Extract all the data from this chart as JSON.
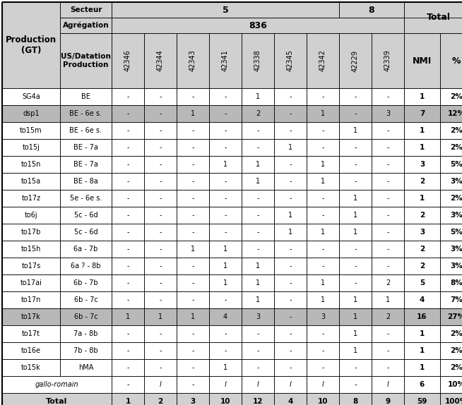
{
  "rows": [
    [
      "SG4a",
      "BE",
      "-",
      "-",
      "-",
      "-",
      "1",
      "-",
      "-",
      "-",
      "-",
      "1",
      "2%"
    ],
    [
      "dsp1",
      "BE - 6e s.",
      "-",
      "-",
      "1",
      "-",
      "2",
      "-",
      "1",
      "-",
      "3",
      "7",
      "12%"
    ],
    [
      "to15m",
      "BE - 6e s.",
      "-",
      "-",
      "-",
      "-",
      "-",
      "-",
      "-",
      "1",
      "-",
      "1",
      "2%"
    ],
    [
      "to15j",
      "BE - 7a",
      "-",
      "-",
      "-",
      "-",
      "-",
      "1",
      "-",
      "-",
      "-",
      "1",
      "2%"
    ],
    [
      "to15n",
      "BE - 7a",
      "-",
      "-",
      "-",
      "1",
      "1",
      "-",
      "1",
      "-",
      "-",
      "3",
      "5%"
    ],
    [
      "to15a",
      "BE - 8a",
      "-",
      "-",
      "-",
      "-",
      "1",
      "-",
      "1",
      "-",
      "-",
      "2",
      "3%"
    ],
    [
      "to17z",
      "5e - 6e s.",
      "-",
      "-",
      "-",
      "-",
      "-",
      "-",
      "-",
      "1",
      "-",
      "1",
      "2%"
    ],
    [
      "to6j",
      "5c - 6d",
      "-",
      "-",
      "-",
      "-",
      "-",
      "1",
      "-",
      "1",
      "-",
      "2",
      "3%"
    ],
    [
      "to17b",
      "5c - 6d",
      "-",
      "-",
      "-",
      "-",
      "-",
      "1",
      "1",
      "1",
      "-",
      "3",
      "5%"
    ],
    [
      "to15h",
      "6a - 7b",
      "-",
      "-",
      "1",
      "1",
      "-",
      "-",
      "-",
      "-",
      "-",
      "2",
      "3%"
    ],
    [
      "to17s",
      "6a ? - 8b",
      "-",
      "-",
      "-",
      "1",
      "1",
      "-",
      "-",
      "-",
      "-",
      "2",
      "3%"
    ],
    [
      "to17ai",
      "6b - 7b",
      "-",
      "-",
      "-",
      "1",
      "1",
      "-",
      "1",
      "-",
      "2",
      "5",
      "8%"
    ],
    [
      "to17n",
      "6b - 7c",
      "-",
      "-",
      "-",
      "-",
      "1",
      "-",
      "1",
      "1",
      "1",
      "4",
      "7%"
    ],
    [
      "to17k",
      "6b - 7c",
      "1",
      "1",
      "1",
      "4",
      "3",
      "-",
      "3",
      "1",
      "2",
      "16",
      "27%"
    ],
    [
      "to17t",
      "7a - 8b",
      "-",
      "-",
      "-",
      "-",
      "-",
      "-",
      "-",
      "1",
      "-",
      "1",
      "2%"
    ],
    [
      "to16e",
      "7b - 8b",
      "-",
      "-",
      "-",
      "-",
      "-",
      "-",
      "-",
      "1",
      "-",
      "1",
      "2%"
    ],
    [
      "to15k",
      "hMA",
      "-",
      "-",
      "-",
      "1",
      "-",
      "-",
      "-",
      "-",
      "-",
      "1",
      "2%"
    ]
  ],
  "italic_row": [
    "gallo-romain",
    "-",
    "l",
    "-",
    "l",
    "l",
    "l",
    "l",
    "-",
    "l",
    "6",
    "10%"
  ],
  "total_row": [
    "Total",
    "1",
    "2",
    "3",
    "10",
    "12",
    "4",
    "10",
    "8",
    "9",
    "59",
    "100%"
  ],
  "highlight_rows": [
    1,
    13
  ],
  "col_labels": [
    "42346",
    "42344",
    "42343",
    "42341",
    "42338",
    "42345",
    "42342",
    "42229",
    "42339"
  ],
  "bg_header": "#d0d0d0",
  "bg_highlight": "#b8b8b8",
  "bg_white": "#ffffff",
  "bg_total": "#d0d0d0",
  "figsize": [
    6.54,
    5.74
  ],
  "dpi": 100
}
